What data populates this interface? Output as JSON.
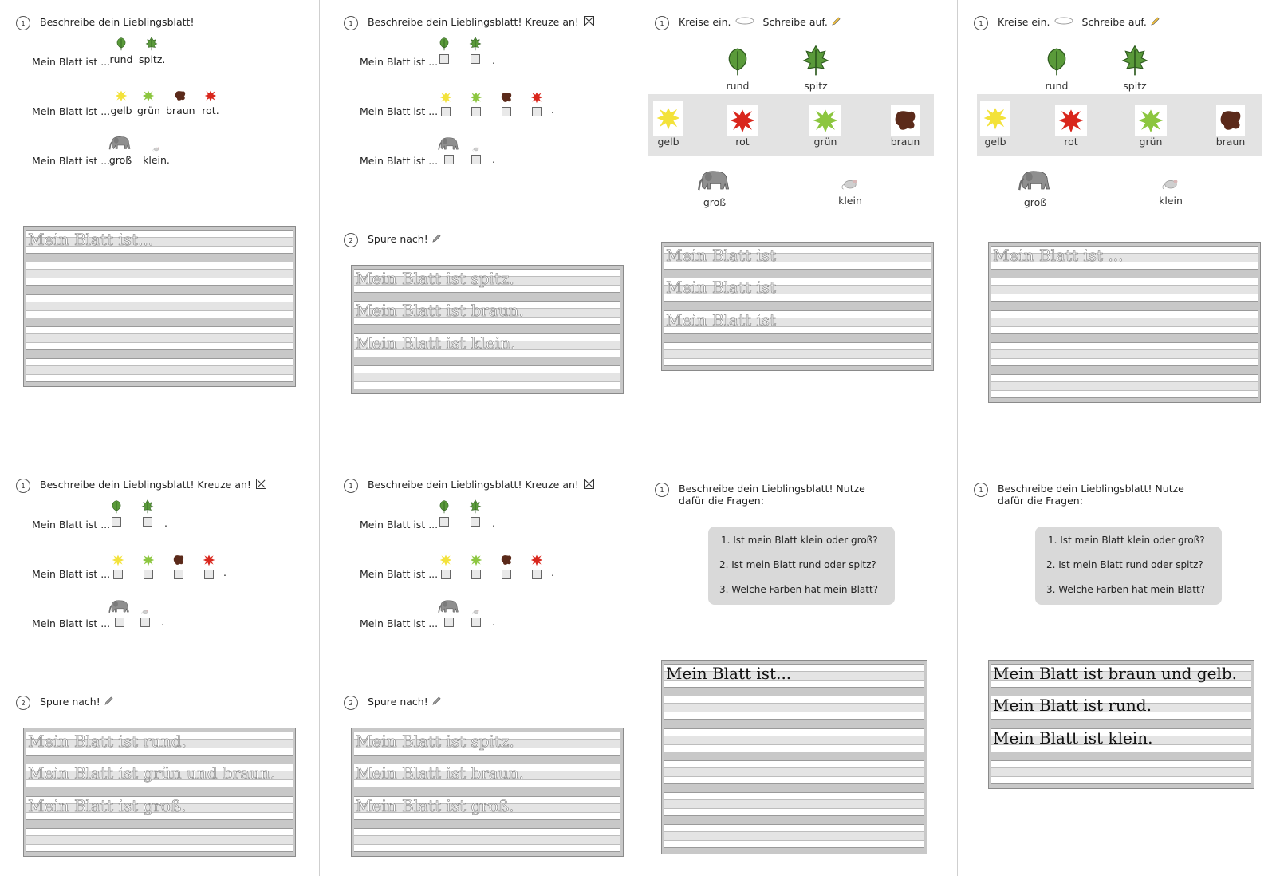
{
  "panels": {
    "p1": {
      "task1": "Beschreibe dein Lieblingsblatt!",
      "row_label_a": "Mein Blatt ist ...",
      "row_label_b": "Mein Blatt ist ...",
      "row_label_c": "Mein Blatt ist ...",
      "rund": "rund",
      "spitz": "spitz.",
      "gelb": "gelb",
      "gruen": "grün",
      "braun": "braun",
      "rot": "rot.",
      "gross": "groß",
      "klein": "klein.",
      "lines": [
        "Mein Blatt ist..."
      ]
    },
    "p2": {
      "task1": "Beschreibe dein Lieblingsblatt! Kreuze an!",
      "row_label_a": "Mein Blatt ist ...",
      "row_label_b": "Mein Blatt ist ...",
      "row_label_c": "Mein Blatt ist ...",
      "period": ".",
      "task2": "Spure nach!",
      "lines": [
        "Mein Blatt ist spitz.",
        "Mein Blatt ist braun.",
        "Mein Blatt ist klein."
      ]
    },
    "p3": {
      "task1a": "Kreise ein.",
      "task1b": "Schreibe auf.",
      "rund": "rund",
      "spitz": "spitz",
      "gelb": "gelb",
      "rot": "rot",
      "gruen": "grün",
      "braun": "braun",
      "gross": "groß",
      "klein": "klein",
      "lines": [
        "Mein Blatt ist",
        "Mein Blatt ist",
        "Mein Blatt ist"
      ]
    },
    "p4": {
      "task1a": "Kreise ein.",
      "task1b": "Schreibe auf.",
      "rund": "rund",
      "spitz": "spitz",
      "gelb": "gelb",
      "rot": "rot",
      "gruen": "grün",
      "braun": "braun",
      "gross": "groß",
      "klein": "klein",
      "lines": [
        "Mein Blatt ist ..."
      ]
    },
    "p5": {
      "task1": "Beschreibe dein Lieblingsblatt! Kreuze an!",
      "row_label_a": "Mein Blatt ist ...",
      "row_label_b": "Mein Blatt ist ...",
      "row_label_c": "Mein Blatt ist ...",
      "period": ".",
      "task2": "Spure nach!",
      "lines": [
        "Mein Blatt ist rund.",
        "Mein Blatt ist grün und braun.",
        "Mein Blatt ist groß."
      ]
    },
    "p6": {
      "task1": "Beschreibe dein Lieblingsblatt! Kreuze an!",
      "row_label_a": "Mein Blatt ist ...",
      "row_label_b": "Mein Blatt ist ...",
      "row_label_c": "Mein Blatt ist ...",
      "period": ".",
      "task2": "Spure nach!",
      "lines": [
        "Mein Blatt ist spitz.",
        "Mein Blatt ist braun.",
        "Mein Blatt ist groß."
      ]
    },
    "p7": {
      "task1": "Beschreibe dein Lieblingsblatt! Nutze dafür die Fragen:",
      "questions": [
        "1. Ist mein Blatt klein oder groß?",
        "2. Ist mein Blatt rund oder spitz?",
        "3. Welche Farben hat mein Blatt?"
      ],
      "lines": [
        "Mein Blatt ist..."
      ]
    },
    "p8": {
      "task1": "Beschreibe dein Lieblingsblatt! Nutze dafür die Fragen:",
      "questions": [
        "1. Ist mein Blatt klein oder groß?",
        "2. Ist mein Blatt rund oder spitz?",
        "3. Welche Farben hat mein Blatt?"
      ],
      "lines": [
        "Mein Blatt ist braun und gelb.",
        "Mein Blatt ist rund.",
        "Mein Blatt ist klein."
      ]
    }
  },
  "numbers": {
    "one": "1",
    "two": "2"
  },
  "colors": {
    "leaf": "#5a9a3a",
    "yellow": "#f3e23a",
    "green": "#8cc63f",
    "brown": "#5b2a1a",
    "red": "#d9261c",
    "box": "#c8c8c8",
    "line": "#9a9a9a"
  },
  "icons": [
    "round-leaf-icon",
    "pointed-leaf-icon",
    "yellow-splash-icon",
    "green-splash-icon",
    "brown-splash-icon",
    "red-splash-icon",
    "elephant-icon",
    "mouse-icon",
    "pencil-icon",
    "oval-icon",
    "cross-box-icon"
  ]
}
